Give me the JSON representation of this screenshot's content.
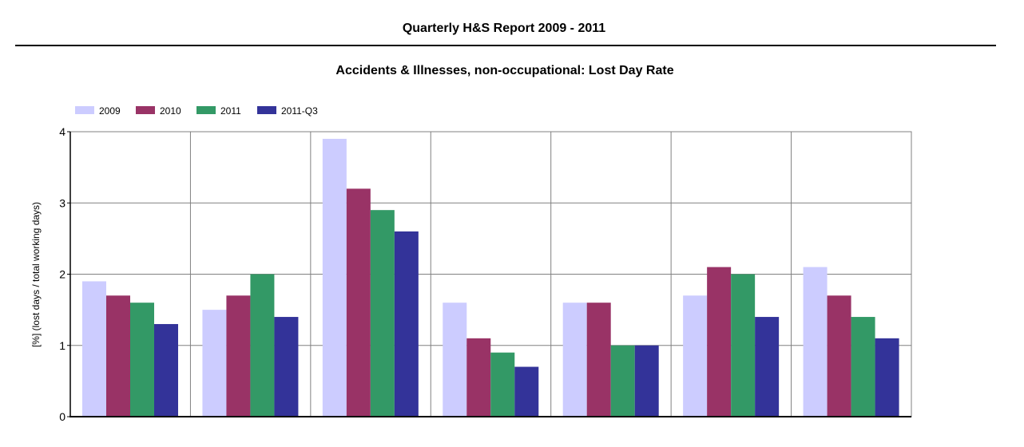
{
  "report": {
    "title": "Quarterly H&S Report 2009 - 2011"
  },
  "chart_data": {
    "type": "bar",
    "title": "Accidents & Illnesses, non-occupational: Lost Day Rate",
    "xlabel": "",
    "ylabel": "[%] (lost days / total working days)",
    "ylim": [
      0,
      4
    ],
    "yticks": [
      "0",
      "1",
      "2",
      "3",
      "4"
    ],
    "grid": true,
    "legend_position": "top-left",
    "categories": [
      "",
      "",
      "",
      "",
      "",
      "",
      ""
    ],
    "series": [
      {
        "name": "2009",
        "color": "#ccccff",
        "values": [
          1.9,
          1.5,
          3.9,
          1.6,
          1.6,
          1.7,
          2.1
        ]
      },
      {
        "name": "2010",
        "color": "#993366",
        "values": [
          1.7,
          1.7,
          3.2,
          1.1,
          1.6,
          2.1,
          1.7
        ]
      },
      {
        "name": "2011",
        "color": "#339966",
        "values": [
          1.6,
          2.0,
          2.9,
          0.9,
          1.0,
          2.0,
          1.4
        ]
      },
      {
        "name": "2011-Q3",
        "color": "#333399",
        "values": [
          1.3,
          1.4,
          2.6,
          0.7,
          1.0,
          1.4,
          1.1
        ]
      }
    ]
  }
}
